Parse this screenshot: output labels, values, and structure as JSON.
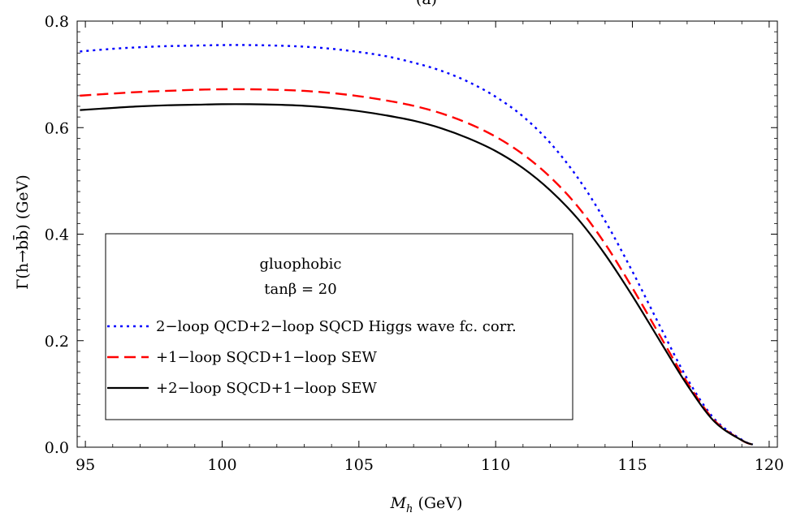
{
  "chart_data": {
    "type": "line",
    "title": "(a)",
    "xlabel": {
      "symbol": "M",
      "sub": "h",
      "unit": " (GeV)"
    },
    "ylabel": "Γ(h→bb̄) (GeV)",
    "xlim": [
      94.7,
      120.3
    ],
    "ylim": [
      0.0,
      0.8
    ],
    "x_ticks": [
      95,
      100,
      105,
      110,
      115,
      120
    ],
    "y_ticks": [
      0.0,
      0.2,
      0.4,
      0.6,
      0.8
    ],
    "x_tick_labels": [
      "95",
      "100",
      "105",
      "110",
      "115",
      "120"
    ],
    "y_tick_labels": [
      "0.0",
      "0.2",
      "0.4",
      "0.6",
      "0.8"
    ],
    "grid": false,
    "legend": {
      "placement": "lower-left",
      "header_line1": "gluophobic",
      "header_line2": "tanβ = 20"
    },
    "series": [
      {
        "name": "2−loop QCD+2−loop SQCD Higgs wave fc. corr.",
        "color": "#0000ff",
        "dash": "dotted",
        "x": [
          94.8,
          96,
          97,
          98,
          99,
          100,
          101,
          102,
          103,
          104,
          105,
          106,
          107,
          108,
          109,
          110,
          111,
          112,
          113,
          114,
          115,
          116,
          117,
          118,
          119,
          119.4
        ],
        "y": [
          0.743,
          0.748,
          0.751,
          0.753,
          0.754,
          0.755,
          0.755,
          0.754,
          0.752,
          0.748,
          0.742,
          0.734,
          0.722,
          0.707,
          0.686,
          0.658,
          0.621,
          0.571,
          0.506,
          0.425,
          0.33,
          0.228,
          0.129,
          0.053,
          0.014,
          0.005
        ]
      },
      {
        "name": "+1−loop SQCD+1−loop SEW",
        "color": "#ff0000",
        "dash": "dashed",
        "x": [
          94.8,
          96,
          97,
          98,
          99,
          100,
          101,
          102,
          103,
          104,
          105,
          106,
          107,
          108,
          109,
          110,
          111,
          112,
          113,
          114,
          115,
          116,
          117,
          118,
          119,
          119.4
        ],
        "y": [
          0.66,
          0.664,
          0.667,
          0.669,
          0.671,
          0.672,
          0.672,
          0.671,
          0.669,
          0.665,
          0.659,
          0.651,
          0.641,
          0.627,
          0.608,
          0.583,
          0.55,
          0.507,
          0.452,
          0.382,
          0.299,
          0.21,
          0.122,
          0.05,
          0.013,
          0.005
        ]
      },
      {
        "name": "+2−loop SQCD+1−loop SEW",
        "color": "#000000",
        "dash": "solid",
        "x": [
          94.8,
          96,
          97,
          98,
          99,
          100,
          101,
          102,
          103,
          104,
          105,
          106,
          107,
          108,
          109,
          110,
          111,
          112,
          113,
          114,
          115,
          116,
          117,
          118,
          119,
          119.4
        ],
        "y": [
          0.633,
          0.637,
          0.64,
          0.642,
          0.643,
          0.644,
          0.644,
          0.643,
          0.641,
          0.637,
          0.631,
          0.623,
          0.613,
          0.599,
          0.58,
          0.556,
          0.524,
          0.482,
          0.429,
          0.362,
          0.284,
          0.2,
          0.117,
          0.048,
          0.013,
          0.005
        ]
      }
    ]
  }
}
